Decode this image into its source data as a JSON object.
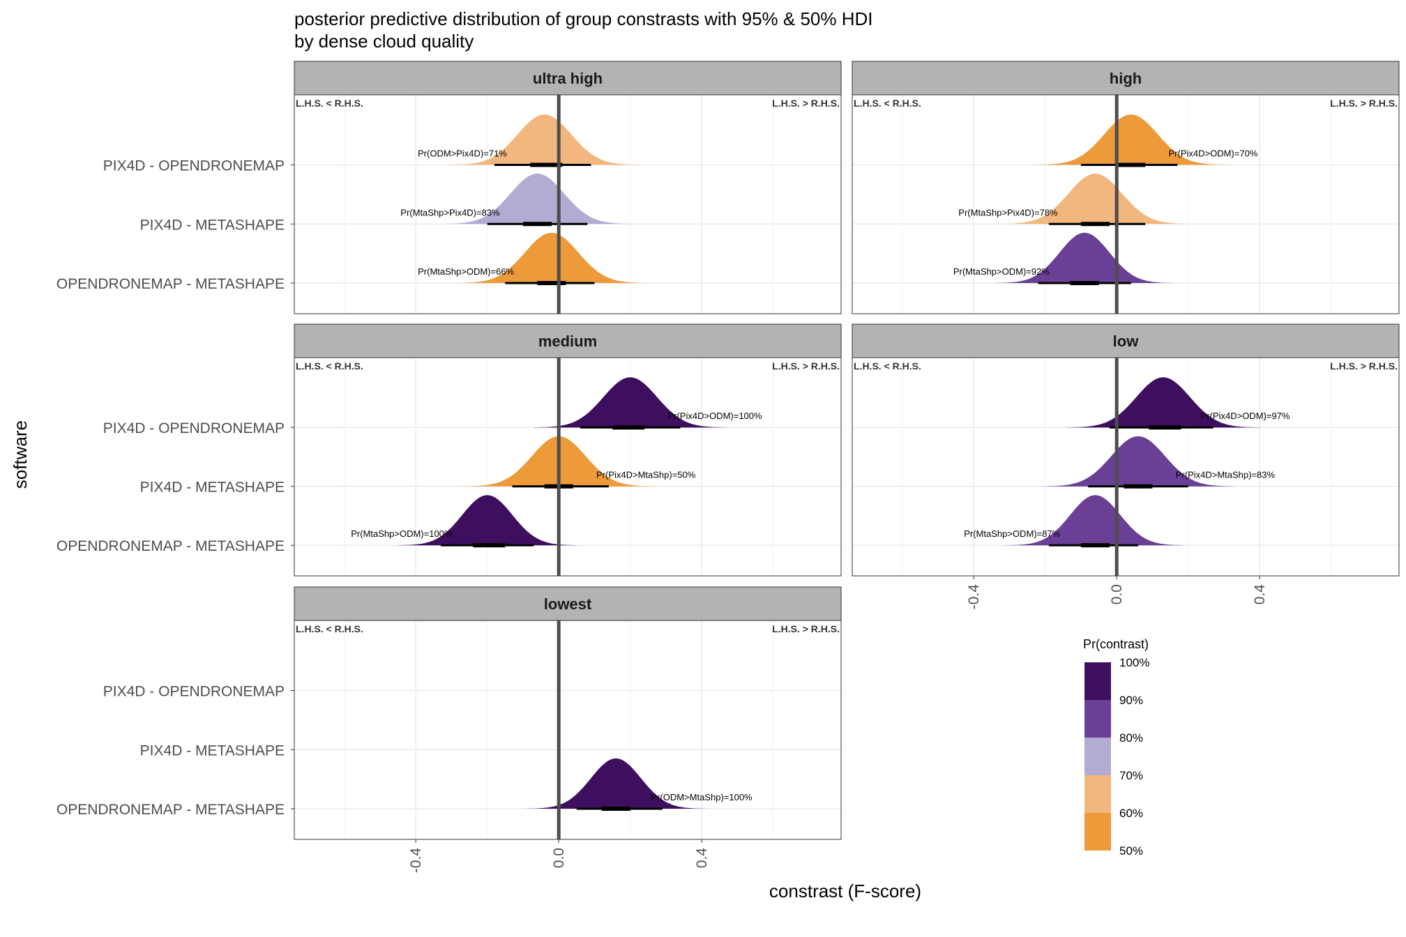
{
  "title_line1": "posterior predictive distribution of group constrasts with 95% & 50% HDI",
  "title_line2": "by dense cloud quality",
  "colors": {
    "100": "#3f0f5f",
    "90": "#6a4096",
    "80": "#b2abd2",
    "70": "#f2b77e",
    "60": "#ec9a3a",
    "strip_bg": "#b3b3b3",
    "grid": "#ebebeb",
    "zero_line": "#4d4d4d"
  },
  "chart_data": {
    "type": "area",
    "xlabel": "constrast (F-score)",
    "ylabel": "software",
    "xlim": [
      -0.74,
      0.79
    ],
    "x_ticks": [
      "-0.4",
      "0.0",
      "0.4"
    ],
    "categories": [
      "PIX4D - OPENDRONEMAP",
      "PIX4D - METASHAPE",
      "OPENDRONEMAP - METASHAPE"
    ],
    "side_labels": {
      "left": "L.H.S. < R.H.S.",
      "right": "L.H.S. > R.H.S."
    },
    "legend": {
      "title": "Pr(contrast)",
      "labels": [
        "100%",
        "90%",
        "80%",
        "70%",
        "60%",
        "50%"
      ],
      "position": "bottom-right"
    },
    "panels": [
      {
        "name": "ultra high",
        "series": [
          {
            "category": "PIX4D - OPENDRONEMAP",
            "mode": -0.04,
            "sd": 0.075,
            "lo95": -0.18,
            "hi95": 0.09,
            "lo50": -0.08,
            "hi50": 0.01,
            "median": -0.04,
            "prob_band": "70",
            "annotation": "Pr(ODM>Pix4D)=71%",
            "ann_side": "left"
          },
          {
            "category": "PIX4D - METASHAPE",
            "mode": -0.06,
            "sd": 0.075,
            "lo95": -0.2,
            "hi95": 0.08,
            "lo50": -0.1,
            "hi50": -0.02,
            "median": -0.06,
            "prob_band": "80",
            "annotation": "Pr(MtaShp>Pix4D)=83%",
            "ann_side": "left"
          },
          {
            "category": "OPENDRONEMAP - METASHAPE",
            "mode": -0.02,
            "sd": 0.075,
            "lo95": -0.15,
            "hi95": 0.1,
            "lo50": -0.06,
            "hi50": 0.02,
            "median": -0.02,
            "prob_band": "60",
            "annotation": "Pr(MtaShp>ODM)=66%",
            "ann_side": "left"
          }
        ]
      },
      {
        "name": "high",
        "series": [
          {
            "category": "PIX4D - OPENDRONEMAP",
            "mode": 0.04,
            "sd": 0.075,
            "lo95": -0.1,
            "hi95": 0.17,
            "lo50": 0.0,
            "hi50": 0.08,
            "median": 0.04,
            "prob_band": "60",
            "annotation": "Pr(Pix4D>ODM)=70%",
            "ann_side": "right"
          },
          {
            "category": "PIX4D - METASHAPE",
            "mode": -0.06,
            "sd": 0.075,
            "lo95": -0.19,
            "hi95": 0.08,
            "lo50": -0.1,
            "hi50": -0.02,
            "median": -0.06,
            "prob_band": "70",
            "annotation": "Pr(MtaShp>Pix4D)=78%",
            "ann_side": "left"
          },
          {
            "category": "OPENDRONEMAP - METASHAPE",
            "mode": -0.09,
            "sd": 0.07,
            "lo95": -0.22,
            "hi95": 0.04,
            "lo50": -0.13,
            "hi50": -0.05,
            "median": -0.09,
            "prob_band": "90",
            "annotation": "Pr(MtaShp>ODM)=92%",
            "ann_side": "left"
          }
        ]
      },
      {
        "name": "medium",
        "series": [
          {
            "category": "PIX4D - OPENDRONEMAP",
            "mode": 0.2,
            "sd": 0.075,
            "lo95": 0.06,
            "hi95": 0.34,
            "lo50": 0.15,
            "hi50": 0.24,
            "median": 0.2,
            "prob_band": "100",
            "annotation": "Pr(Pix4D>ODM)=100%",
            "ann_side": "right"
          },
          {
            "category": "PIX4D - METASHAPE",
            "mode": 0.0,
            "sd": 0.075,
            "lo95": -0.13,
            "hi95": 0.14,
            "lo50": -0.04,
            "hi50": 0.04,
            "median": 0.0,
            "prob_band": "60",
            "annotation": "Pr(Pix4D>MtaShp)=50%",
            "ann_side": "right"
          },
          {
            "category": "OPENDRONEMAP - METASHAPE",
            "mode": -0.2,
            "sd": 0.07,
            "lo95": -0.33,
            "hi95": -0.07,
            "lo50": -0.24,
            "hi50": -0.15,
            "median": -0.2,
            "prob_band": "100",
            "annotation": "Pr(MtaShp>ODM)=100%",
            "ann_side": "left"
          }
        ]
      },
      {
        "name": "low",
        "series": [
          {
            "category": "PIX4D - OPENDRONEMAP",
            "mode": 0.13,
            "sd": 0.075,
            "lo95": -0.02,
            "hi95": 0.27,
            "lo50": 0.09,
            "hi50": 0.18,
            "median": 0.13,
            "prob_band": "100",
            "annotation": "Pr(Pix4D>ODM)=97%",
            "ann_side": "right"
          },
          {
            "category": "PIX4D - METASHAPE",
            "mode": 0.06,
            "sd": 0.075,
            "lo95": -0.08,
            "hi95": 0.2,
            "lo50": 0.02,
            "hi50": 0.1,
            "median": 0.06,
            "prob_band": "90",
            "annotation": "Pr(Pix4D>MtaShp)=83%",
            "ann_side": "right"
          },
          {
            "category": "OPENDRONEMAP - METASHAPE",
            "mode": -0.06,
            "sd": 0.07,
            "lo95": -0.19,
            "hi95": 0.06,
            "lo50": -0.1,
            "hi50": -0.02,
            "median": -0.06,
            "prob_band": "90",
            "annotation": "Pr(MtaShp>ODM)=87%",
            "ann_side": "left"
          }
        ]
      },
      {
        "name": "lowest",
        "series": [
          {
            "category": "OPENDRONEMAP - METASHAPE",
            "mode": 0.16,
            "sd": 0.07,
            "lo95": 0.05,
            "hi95": 0.29,
            "lo50": 0.12,
            "hi50": 0.2,
            "median": 0.16,
            "prob_band": "100",
            "annotation": "Pr(ODM>MtaShp)=100%",
            "ann_side": "right"
          }
        ]
      }
    ]
  }
}
